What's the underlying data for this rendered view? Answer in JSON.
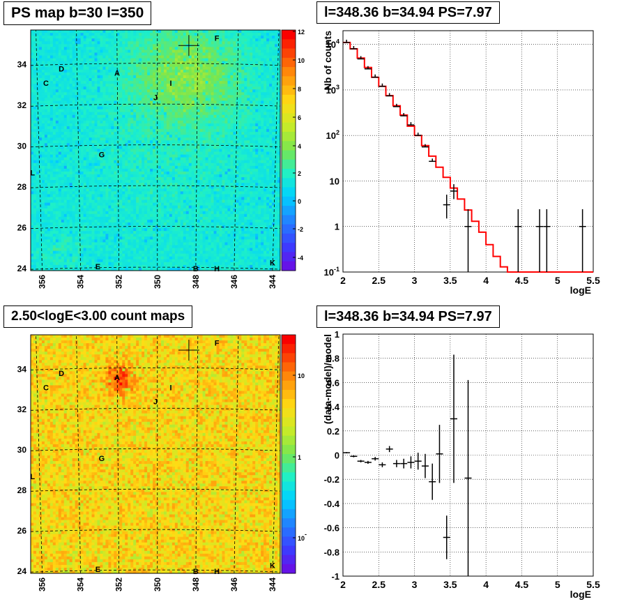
{
  "panels": {
    "map_top": {
      "title": "PS map b=30 l=350",
      "y_ticks": [
        "24",
        "26",
        "28",
        "30",
        "32",
        "34"
      ],
      "x_ticks": [
        "356",
        "354",
        "352",
        "350",
        "348",
        "346",
        "344"
      ],
      "colorbar_ticks": [
        "12",
        "10",
        "8",
        "6",
        "4",
        "2",
        "0",
        "-2",
        "-4"
      ],
      "markers": [
        "A",
        "C",
        "D",
        "E",
        "F",
        "G",
        "I",
        "J",
        "L",
        "B",
        "H",
        "K"
      ]
    },
    "spectrum": {
      "title": "l=348.36 b=34.94 PS=7.97",
      "ylabel": "Nb of counts",
      "xlabel": "logE",
      "x_ticks": [
        "2",
        "2.5",
        "3",
        "3.5",
        "4",
        "4.5",
        "5",
        "5.5"
      ],
      "y_ticks": [
        "10^4",
        "10^3",
        "10^2",
        "10",
        "1",
        "10^-1"
      ]
    },
    "map_bottom": {
      "title": "2.50<logE<3.00 count maps",
      "y_ticks": [
        "24",
        "26",
        "28",
        "30",
        "32",
        "34"
      ],
      "x_ticks": [
        "356",
        "354",
        "352",
        "350",
        "348",
        "346",
        "344"
      ],
      "colorbar_ticks": [
        "10",
        "1",
        "10^-1"
      ],
      "markers": [
        "A",
        "C",
        "D",
        "E",
        "F",
        "G",
        "I",
        "J",
        "L",
        "B",
        "H",
        "K"
      ]
    },
    "residual": {
      "title": "l=348.36 b=34.94 PS=7.97",
      "ylabel": "(data-model)/model",
      "xlabel": "logE",
      "x_ticks": [
        "2",
        "2.5",
        "3",
        "3.5",
        "4",
        "4.5",
        "5",
        "5.5"
      ],
      "y_ticks": [
        "1",
        "0.8",
        "0.6",
        "0.4",
        "0.2",
        "0",
        "-0.2",
        "-0.4",
        "-0.6",
        "-0.8",
        "-1"
      ]
    }
  },
  "colors": {
    "model_line": "#ff0000",
    "data_points": "#000000",
    "grid": "#999999"
  },
  "chart_data": [
    {
      "type": "heatmap",
      "title": "PS map b=30 l=350",
      "xlabel": "",
      "ylabel": "",
      "xlim": [
        356.6,
        343.6
      ],
      "ylim": [
        23.9,
        35.7
      ],
      "zlim": [
        -5,
        12
      ],
      "description_values": "background mostly 0-2 (cyan), green enhancement around upper center region",
      "peak": {
        "x": 348.36,
        "y": 34.94,
        "value": 7.97
      },
      "markers": [
        {
          "label": "A",
          "x": 352.1,
          "y": 33.6
        },
        {
          "label": "C",
          "x": 355.8,
          "y": 33.1
        },
        {
          "label": "D",
          "x": 355.0,
          "y": 33.8
        },
        {
          "label": "E",
          "x": 353.1,
          "y": 24.1
        },
        {
          "label": "F",
          "x": 346.9,
          "y": 35.3
        },
        {
          "label": "G",
          "x": 352.9,
          "y": 29.6
        },
        {
          "label": "I",
          "x": 349.3,
          "y": 33.1
        },
        {
          "label": "J",
          "x": 350.1,
          "y": 32.4
        },
        {
          "label": "L",
          "x": 356.5,
          "y": 28.7
        },
        {
          "label": "B",
          "x": 348.0,
          "y": 24.0
        },
        {
          "label": "H",
          "x": 346.9,
          "y": 24.0
        },
        {
          "label": "K",
          "x": 344.0,
          "y": 24.3
        }
      ]
    },
    {
      "type": "line",
      "title": "l=348.36 b=34.94 PS=7.97",
      "xlabel": "logE",
      "ylabel": "Nb of counts",
      "xlim": [
        2,
        5.5
      ],
      "ylim": [
        0.1,
        20000
      ],
      "log_y": true,
      "series": [
        {
          "name": "model",
          "step_edges": [
            2,
            2.1,
            2.2,
            2.3,
            2.4,
            2.5,
            2.6,
            2.7,
            2.8,
            2.9,
            3.0,
            3.1,
            3.2,
            3.3,
            3.4,
            3.5,
            3.6,
            3.7,
            3.8,
            3.9,
            4.0,
            4.1,
            4.2,
            4.3,
            4.4,
            4.5,
            4.6,
            4.7,
            4.8,
            4.9,
            5.0,
            5.1,
            5.2,
            5.3,
            5.4,
            5.5
          ],
          "values": [
            11000,
            8000,
            5000,
            3100,
            1900,
            1200,
            750,
            450,
            280,
            160,
            100,
            60,
            35,
            20,
            12,
            7,
            4,
            2.3,
            1.3,
            0.75,
            0.4,
            0.22,
            0.13,
            0.1,
            0.1,
            0.1,
            0.1,
            0.1,
            0.1,
            0.1,
            0.1,
            0.1,
            0.1,
            0.1,
            0.1
          ]
        },
        {
          "name": "data",
          "x": [
            2.05,
            2.15,
            2.25,
            2.35,
            2.45,
            2.55,
            2.65,
            2.75,
            2.85,
            2.95,
            3.05,
            3.15,
            3.25,
            3.35,
            3.45,
            3.55,
            3.65,
            3.75,
            4.45,
            4.75,
            4.85,
            5.35
          ],
          "y": [
            11000,
            8000,
            4800,
            2900,
            1900,
            1200,
            740,
            430,
            270,
            170,
            100,
            56,
            27,
            null,
            3,
            6,
            null,
            1,
            1,
            1,
            1,
            1
          ],
          "y_err_low": [
            0,
            0,
            0,
            0,
            0,
            0,
            0,
            0,
            0,
            0,
            0,
            0,
            0,
            0,
            1.5,
            2,
            0,
            0.9,
            0.9,
            0.9,
            0.9,
            0.9
          ],
          "y_err_high": [
            0,
            0,
            0,
            0,
            0,
            0,
            0,
            0,
            0,
            0,
            0,
            0,
            0,
            0,
            2,
            2.5,
            0,
            1.4,
            1.4,
            1.4,
            1.4,
            1.4
          ]
        }
      ]
    },
    {
      "type": "heatmap",
      "title": "2.50<logE<3.00 count maps",
      "xlabel": "",
      "ylabel": "",
      "xlim": [
        356.6,
        343.6
      ],
      "ylim": [
        23.9,
        35.7
      ],
      "zscale": "log",
      "description_values": "counts mostly ~3-10 (orange/yellow), hot spot at A near (352, 33.5)",
      "markers": [
        {
          "label": "A",
          "x": 352.1,
          "y": 33.6
        },
        {
          "label": "C",
          "x": 355.8,
          "y": 33.1
        },
        {
          "label": "D",
          "x": 355.0,
          "y": 33.8
        },
        {
          "label": "E",
          "x": 353.1,
          "y": 24.1
        },
        {
          "label": "F",
          "x": 346.9,
          "y": 35.3
        },
        {
          "label": "G",
          "x": 352.9,
          "y": 29.6
        },
        {
          "label": "I",
          "x": 349.3,
          "y": 33.1
        },
        {
          "label": "J",
          "x": 350.1,
          "y": 32.4
        },
        {
          "label": "L",
          "x": 356.5,
          "y": 28.7
        },
        {
          "label": "B",
          "x": 348.0,
          "y": 24.0
        },
        {
          "label": "H",
          "x": 346.9,
          "y": 24.0
        },
        {
          "label": "K",
          "x": 344.0,
          "y": 24.3
        }
      ]
    },
    {
      "type": "scatter",
      "title": "l=348.36 b=34.94 PS=7.97",
      "xlabel": "logE",
      "ylabel": "(data-model)/model",
      "xlim": [
        2,
        5.5
      ],
      "ylim": [
        -1,
        1
      ],
      "series": [
        {
          "name": "residual",
          "x": [
            2.05,
            2.15,
            2.25,
            2.35,
            2.45,
            2.55,
            2.65,
            2.75,
            2.85,
            2.95,
            3.05,
            3.15,
            3.25,
            3.35,
            3.45,
            3.55,
            3.75
          ],
          "y": [
            0.02,
            -0.01,
            -0.05,
            -0.06,
            -0.03,
            -0.08,
            0.05,
            -0.07,
            -0.07,
            -0.06,
            -0.05,
            -0.09,
            -0.22,
            0.01,
            -0.68,
            0.3,
            -0.19
          ],
          "y_err": [
            0.005,
            0.008,
            0.01,
            0.012,
            0.015,
            0.02,
            0.025,
            0.03,
            0.04,
            0.05,
            0.07,
            0.1,
            0.15,
            0.24,
            0.18,
            0.53,
            0.81
          ]
        }
      ]
    }
  ]
}
